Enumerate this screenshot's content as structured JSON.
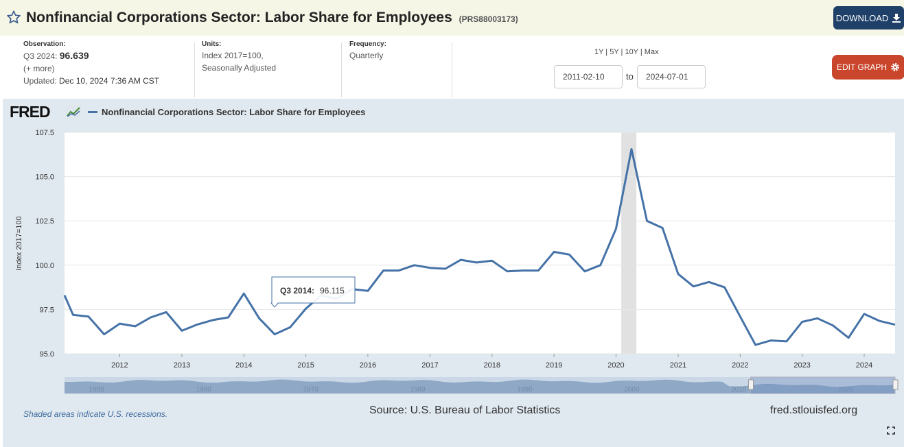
{
  "header": {
    "title": "Nonfinancial Corporations Sector: Labor Share for Employees",
    "series_id": "(PRS88003173)",
    "download_label": "DOWNLOAD"
  },
  "meta": {
    "observation_label": "Observation:",
    "observation_period": "Q3 2024:",
    "observation_value": "96.639",
    "more_label": "(+ more)",
    "updated_label": "Updated:",
    "updated_value": "Dec 10, 2024 7:36 AM CST",
    "units_label": "Units:",
    "units_line1": "Index 2017=100,",
    "units_line2": "Seasonally Adjusted",
    "frequency_label": "Frequency:",
    "frequency_value": "Quarterly"
  },
  "range": {
    "links": "1Y | 5Y | 10Y | Max",
    "start": "2011-02-10",
    "to_label": "to",
    "end": "2024-07-01",
    "edit_label": "EDIT GRAPH"
  },
  "footer": {
    "logo": "FRED",
    "recession_note": "Shaded areas indicate U.S. recessions.",
    "source": "Source: U.S. Bureau of Labor Statistics",
    "site": "fred.stlouisfed.org"
  },
  "colors": {
    "series": "#4572a7",
    "recession": "#e1e1e1",
    "panel": "#e1e9f0",
    "navigator": "#8fa8c6"
  },
  "tooltip": {
    "period": "Q3 2014:",
    "value": "96.115"
  },
  "chart_data": {
    "type": "line",
    "legend": "Nonfinancial Corporations Sector: Labor Share for Employees",
    "ylabel": "Index 2017=100",
    "xlabel": "",
    "ylim": [
      95.0,
      107.5
    ],
    "yticks": [
      "95.0",
      "97.5",
      "100.0",
      "102.5",
      "105.0",
      "107.5"
    ],
    "xticks": [
      "2012",
      "2013",
      "2014",
      "2015",
      "2016",
      "2017",
      "2018",
      "2019",
      "2020",
      "2021",
      "2022",
      "2023",
      "2024"
    ],
    "recessions": [
      [
        "2020-02-01",
        "2020-04-30"
      ]
    ],
    "navigator_ticks": [
      "1950",
      "1960",
      "1970",
      "1980",
      "1990",
      "2000",
      "2010",
      "2020"
    ],
    "series": [
      {
        "name": "Nonfinancial Corporations Sector: Labor Share for Employees",
        "x": [
          "2011-02-10",
          "2011-04-01",
          "2011-07-01",
          "2011-10-01",
          "2012-01-01",
          "2012-04-01",
          "2012-07-01",
          "2012-10-01",
          "2013-01-01",
          "2013-04-01",
          "2013-07-01",
          "2013-10-01",
          "2014-01-01",
          "2014-04-01",
          "2014-07-01",
          "2014-10-01",
          "2015-01-01",
          "2015-04-01",
          "2015-07-01",
          "2015-10-01",
          "2016-01-01",
          "2016-04-01",
          "2016-07-01",
          "2016-10-01",
          "2017-01-01",
          "2017-04-01",
          "2017-07-01",
          "2017-10-01",
          "2018-01-01",
          "2018-04-01",
          "2018-07-01",
          "2018-10-01",
          "2019-01-01",
          "2019-04-01",
          "2019-07-01",
          "2019-10-01",
          "2020-01-01",
          "2020-04-01",
          "2020-07-01",
          "2020-10-01",
          "2021-01-01",
          "2021-04-01",
          "2021-07-01",
          "2021-10-01",
          "2022-01-01",
          "2022-04-01",
          "2022-07-01",
          "2022-10-01",
          "2023-01-01",
          "2023-04-01",
          "2023-07-01",
          "2023-10-01",
          "2024-01-01",
          "2024-04-01",
          "2024-07-01"
        ],
        "y": [
          98.3,
          97.2,
          97.1,
          96.1,
          96.7,
          96.55,
          97.05,
          97.35,
          96.3,
          96.65,
          96.9,
          97.05,
          98.4,
          97.0,
          96.1,
          96.5,
          97.55,
          98.3,
          98.1,
          98.65,
          98.55,
          99.7,
          99.7,
          100.0,
          99.85,
          99.8,
          100.3,
          100.15,
          100.25,
          99.65,
          99.7,
          99.7,
          100.75,
          100.6,
          99.65,
          100.0,
          102.05,
          106.55,
          102.5,
          102.1,
          99.5,
          98.8,
          99.05,
          98.75,
          97.1,
          95.5,
          95.75,
          95.7,
          96.8,
          97.0,
          96.6,
          95.9,
          97.25,
          96.85,
          96.639
        ]
      }
    ]
  }
}
